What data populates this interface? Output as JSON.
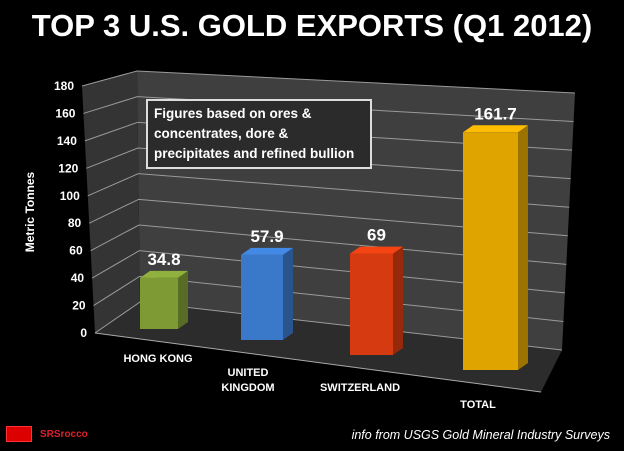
{
  "chart_data": {
    "type": "bar",
    "title": "TOP 3 U.S. GOLD EXPORTS (Q1 2012)",
    "ylabel": "Metric Tonnes",
    "xlabel": "",
    "ylim": [
      0,
      180
    ],
    "yticks": [
      0,
      20,
      40,
      60,
      80,
      100,
      120,
      140,
      160,
      180
    ],
    "grid": true,
    "categories": [
      [
        "HONG KONG"
      ],
      [
        "UNITED",
        "KINGDOM"
      ],
      [
        "SWITZERLAND"
      ],
      [
        "TOTAL"
      ]
    ],
    "values": [
      34.8,
      57.9,
      69,
      161.7
    ],
    "value_labels": [
      "34.8",
      "57.9",
      "69",
      "161.7"
    ],
    "colors": [
      "#7d9a35",
      "#3a78c9",
      "#d63a10",
      "#e0a400"
    ],
    "annotation": "Figures based on ores & concentrates, dore & precipitates and refined bullion"
  },
  "source": "info from USGS Gold Mineral Industry Surveys",
  "logo": {
    "badge": "SRSI",
    "text": "SRSrocco"
  }
}
